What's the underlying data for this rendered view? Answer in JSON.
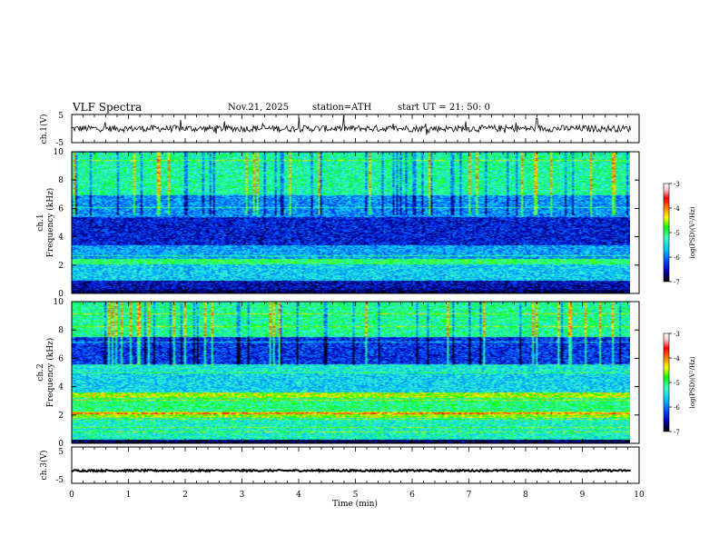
{
  "header": {
    "title": "VLF  Spectra",
    "date": "Nov.21, 2025",
    "station": "station=ATH",
    "start": "start  UT  =   21: 50: 0"
  },
  "colors": {
    "axis": "#000000",
    "colormap": [
      "#000000",
      "#0000aa",
      "#0040ff",
      "#00c0ff",
      "#40ffc0",
      "#00ff00",
      "#ffff00",
      "#ff8000",
      "#ff0000",
      "#ffc0c0",
      "#ffffff"
    ]
  },
  "chart_data": [
    {
      "type": "line",
      "name": "ch1-waveform",
      "ylabel": "ch.1(V)",
      "ylim": [
        -5,
        5
      ],
      "yticks": [
        "5",
        "-5"
      ],
      "xlim": [
        0,
        9.85
      ],
      "baseline": 0,
      "noise_amplitude": 1.2,
      "grid": false
    },
    {
      "type": "heatmap",
      "name": "ch1-spectrogram",
      "ylabel": "Frequency  (kHz)",
      "ylabel2": "ch.1",
      "ylim": [
        0,
        10
      ],
      "yticks": [
        "0",
        "2",
        "4",
        "6",
        "8",
        "10"
      ],
      "xlim": [
        0,
        9.85
      ],
      "bands": [
        {
          "from": 0,
          "to": 0.2,
          "level": 0.05
        },
        {
          "from": 0.2,
          "to": 0.9,
          "level": 0.12
        },
        {
          "from": 0.9,
          "to": 2.0,
          "level": 0.35
        },
        {
          "from": 2.0,
          "to": 2.4,
          "level": 0.5
        },
        {
          "from": 2.4,
          "to": 3.4,
          "level": 0.3
        },
        {
          "from": 3.4,
          "to": 5.4,
          "level": 0.15
        },
        {
          "from": 5.4,
          "to": 7.0,
          "level": 0.28
        },
        {
          "from": 7.0,
          "to": 10,
          "level": 0.45
        }
      ]
    },
    {
      "type": "heatmap",
      "name": "ch2-spectrogram",
      "ylabel": "Frequency  (kHz)",
      "ylabel2": "ch.2",
      "ylim": [
        0,
        10
      ],
      "yticks": [
        "0",
        "2",
        "4",
        "6",
        "8",
        "10"
      ],
      "xlim": [
        0,
        9.85
      ],
      "bands": [
        {
          "from": 0,
          "to": 0.2,
          "level": 0.05
        },
        {
          "from": 0.2,
          "to": 1.8,
          "level": 0.42
        },
        {
          "from": 1.8,
          "to": 2.2,
          "level": 0.6
        },
        {
          "from": 2.2,
          "to": 3.2,
          "level": 0.48
        },
        {
          "from": 3.2,
          "to": 3.6,
          "level": 0.62
        },
        {
          "from": 3.6,
          "to": 5.0,
          "level": 0.36
        },
        {
          "from": 5.0,
          "to": 5.6,
          "level": 0.4
        },
        {
          "from": 5.6,
          "to": 7.5,
          "level": 0.18
        },
        {
          "from": 7.5,
          "to": 10,
          "level": 0.46
        }
      ]
    },
    {
      "type": "line",
      "name": "ch3-waveform",
      "ylabel": "ch.3(V)",
      "ylim": [
        -5,
        5
      ],
      "yticks": [
        "5",
        "-5"
      ],
      "xlim": [
        0,
        9.85
      ],
      "baseline": -1.5,
      "noise_amplitude": 0.25,
      "grid": false
    },
    {
      "type": "axis",
      "name": "time-axis",
      "xlabel": "Time  (min)",
      "xlim": [
        0,
        10
      ],
      "xticks": [
        "0",
        "1",
        "2",
        "3",
        "4",
        "5",
        "6",
        "7",
        "8",
        "9",
        "10"
      ]
    },
    {
      "type": "colorbar",
      "name": "psd-colorbar",
      "label": "log(PSD)(V²/Hz)",
      "range": [
        -7,
        -3
      ],
      "ticks": [
        "-3",
        "-4",
        "-5",
        "-6",
        "-7"
      ]
    }
  ]
}
